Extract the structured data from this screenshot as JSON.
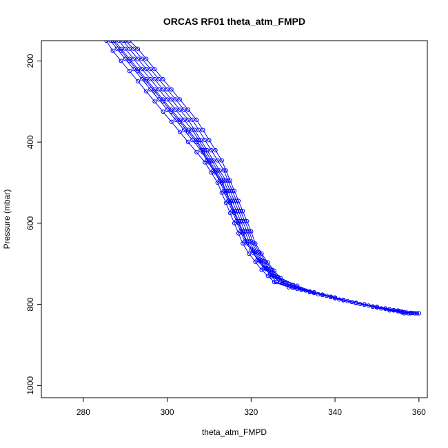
{
  "chart_data": {
    "type": "line",
    "title": "ORCAS RF01 theta_atm_FMPD",
    "xlabel": "theta_atm_FMPD",
    "ylabel": "Pressure (mbar)",
    "xlim": [
      270,
      362
    ],
    "ylim": [
      1030,
      150
    ],
    "y_reversed": true,
    "x_ticks": [
      280,
      300,
      320,
      340,
      360
    ],
    "y_ticks": [
      200,
      400,
      600,
      800,
      1000
    ],
    "grid": false,
    "legend": "none",
    "marker": "open-circle",
    "series_color": "#0000ff",
    "series": [
      {
        "values": [
          [
            286.5,
            150
          ],
          [
            288,
            170
          ],
          [
            290,
            195
          ],
          [
            292,
            220
          ],
          [
            294,
            245
          ],
          [
            296,
            270
          ],
          [
            298,
            295
          ],
          [
            300,
            320
          ],
          [
            302,
            345
          ],
          [
            304,
            370
          ],
          [
            306,
            395
          ],
          [
            308,
            420
          ],
          [
            309.5,
            445
          ],
          [
            311,
            470
          ],
          [
            312.5,
            495
          ],
          [
            313.5,
            520
          ],
          [
            314.5,
            545
          ],
          [
            315.5,
            570
          ],
          [
            316.5,
            595
          ],
          [
            317.5,
            620
          ],
          [
            318.5,
            645
          ],
          [
            320,
            665
          ],
          [
            321.5,
            690
          ],
          [
            323,
            710
          ],
          [
            324.5,
            725
          ],
          [
            326,
            745
          ],
          [
            330,
            760
          ],
          [
            335,
            772
          ],
          [
            340,
            785
          ],
          [
            345,
            797
          ],
          [
            350,
            808
          ],
          [
            354,
            815
          ],
          [
            357,
            820
          ],
          [
            360,
            822
          ]
        ]
      },
      {
        "values": [
          [
            287.5,
            150
          ],
          [
            289,
            170
          ],
          [
            291,
            195
          ],
          [
            293,
            220
          ],
          [
            295,
            245
          ],
          [
            297,
            270
          ],
          [
            299,
            295
          ],
          [
            301,
            320
          ],
          [
            303,
            345
          ],
          [
            305,
            370
          ],
          [
            307,
            395
          ],
          [
            308.5,
            420
          ],
          [
            310,
            445
          ],
          [
            311.5,
            470
          ],
          [
            313,
            495
          ],
          [
            314,
            520
          ],
          [
            315,
            545
          ],
          [
            316,
            570
          ],
          [
            317,
            595
          ],
          [
            318,
            620
          ],
          [
            319,
            645
          ],
          [
            320.5,
            668
          ],
          [
            322,
            690
          ],
          [
            323.5,
            710
          ],
          [
            325,
            728
          ],
          [
            327,
            745
          ],
          [
            331,
            762
          ],
          [
            336,
            775
          ],
          [
            341,
            788
          ],
          [
            346,
            799
          ],
          [
            351,
            810
          ],
          [
            355,
            817
          ],
          [
            358,
            821
          ],
          [
            359.5,
            822
          ]
        ]
      },
      {
        "values": [
          [
            288.5,
            150
          ],
          [
            290,
            170
          ],
          [
            292,
            195
          ],
          [
            294,
            220
          ],
          [
            296,
            245
          ],
          [
            298,
            270
          ],
          [
            300,
            295
          ],
          [
            302,
            320
          ],
          [
            304,
            345
          ],
          [
            306,
            370
          ],
          [
            307.5,
            395
          ],
          [
            309,
            420
          ],
          [
            310.5,
            445
          ],
          [
            312,
            470
          ],
          [
            313.5,
            495
          ],
          [
            314.5,
            520
          ],
          [
            315.5,
            545
          ],
          [
            316.5,
            570
          ],
          [
            317.5,
            595
          ],
          [
            318.5,
            620
          ],
          [
            319.5,
            645
          ],
          [
            321,
            670
          ],
          [
            322.5,
            692
          ],
          [
            324,
            712
          ],
          [
            325.5,
            730
          ],
          [
            328,
            748
          ],
          [
            332,
            764
          ],
          [
            337,
            777
          ],
          [
            342,
            790
          ],
          [
            347,
            801
          ],
          [
            352,
            811
          ],
          [
            356,
            818
          ],
          [
            358.5,
            821
          ],
          [
            359,
            822
          ]
        ]
      },
      {
        "values": [
          [
            289.5,
            150
          ],
          [
            291,
            170
          ],
          [
            293,
            195
          ],
          [
            295,
            220
          ],
          [
            297,
            245
          ],
          [
            299,
            270
          ],
          [
            301,
            295
          ],
          [
            303,
            320
          ],
          [
            305,
            345
          ],
          [
            306.5,
            370
          ],
          [
            308,
            395
          ],
          [
            309.5,
            420
          ],
          [
            311,
            445
          ],
          [
            312.5,
            470
          ],
          [
            314,
            495
          ],
          [
            315,
            520
          ],
          [
            316,
            545
          ],
          [
            317,
            570
          ],
          [
            318,
            595
          ],
          [
            319,
            620
          ],
          [
            320,
            645
          ],
          [
            321.5,
            672
          ],
          [
            323,
            694
          ],
          [
            324.5,
            714
          ],
          [
            326,
            732
          ],
          [
            329,
            750
          ],
          [
            333,
            766
          ],
          [
            338,
            779
          ],
          [
            343,
            792
          ],
          [
            348,
            803
          ],
          [
            353,
            812
          ],
          [
            356.5,
            819
          ],
          [
            358,
            822
          ]
        ]
      },
      {
        "values": [
          [
            290,
            150
          ],
          [
            292,
            170
          ],
          [
            294,
            195
          ],
          [
            296,
            220
          ],
          [
            298,
            245
          ],
          [
            300,
            270
          ],
          [
            302,
            295
          ],
          [
            304,
            320
          ],
          [
            306,
            345
          ],
          [
            307.5,
            370
          ],
          [
            309,
            395
          ],
          [
            310.5,
            420
          ],
          [
            312,
            445
          ],
          [
            313.5,
            470
          ],
          [
            314.5,
            495
          ],
          [
            315.5,
            520
          ],
          [
            316.5,
            545
          ],
          [
            317.5,
            570
          ],
          [
            318.5,
            595
          ],
          [
            319.5,
            620
          ],
          [
            320.5,
            648
          ],
          [
            322,
            672
          ],
          [
            323.5,
            695
          ],
          [
            325,
            715
          ],
          [
            326.5,
            733
          ],
          [
            330,
            752
          ],
          [
            334,
            768
          ],
          [
            339,
            781
          ],
          [
            344,
            794
          ],
          [
            349,
            805
          ],
          [
            354,
            814
          ],
          [
            357,
            820
          ],
          [
            357.5,
            822
          ]
        ]
      },
      {
        "values": [
          [
            285.5,
            150
          ],
          [
            287,
            175
          ],
          [
            289,
            200
          ],
          [
            291,
            225
          ],
          [
            293,
            250
          ],
          [
            295,
            275
          ],
          [
            297,
            300
          ],
          [
            299,
            325
          ],
          [
            301,
            350
          ],
          [
            303,
            375
          ],
          [
            305,
            400
          ],
          [
            307,
            425
          ],
          [
            309,
            450
          ],
          [
            310.5,
            475
          ],
          [
            312,
            500
          ],
          [
            313,
            525
          ],
          [
            314,
            550
          ],
          [
            315,
            575
          ],
          [
            316,
            600
          ],
          [
            317,
            625
          ],
          [
            318,
            650
          ],
          [
            319.5,
            675
          ],
          [
            321,
            695
          ],
          [
            322.5,
            715
          ],
          [
            324,
            730
          ],
          [
            325.5,
            745
          ],
          [
            329,
            758
          ],
          [
            334,
            770
          ],
          [
            339,
            782
          ],
          [
            344,
            794
          ],
          [
            349,
            806
          ],
          [
            353,
            815
          ],
          [
            356,
            820
          ],
          [
            356.5,
            822
          ]
        ]
      },
      {
        "values": [
          [
            287,
            150
          ],
          [
            289,
            175
          ],
          [
            291,
            200
          ],
          [
            293,
            225
          ],
          [
            295,
            250
          ],
          [
            297,
            275
          ],
          [
            299,
            300
          ],
          [
            301,
            325
          ],
          [
            303,
            350
          ],
          [
            305,
            375
          ],
          [
            307,
            400
          ],
          [
            308.5,
            425
          ],
          [
            310,
            450
          ],
          [
            311.5,
            475
          ],
          [
            313,
            500
          ],
          [
            314,
            525
          ],
          [
            315,
            550
          ],
          [
            316,
            575
          ],
          [
            317,
            600
          ],
          [
            318,
            625
          ],
          [
            319,
            650
          ],
          [
            320.5,
            673
          ],
          [
            322,
            694
          ],
          [
            323.5,
            713
          ],
          [
            325,
            731
          ],
          [
            327.5,
            748
          ],
          [
            332,
            763
          ],
          [
            337,
            776
          ],
          [
            342,
            789
          ],
          [
            347,
            800
          ],
          [
            352,
            810
          ],
          [
            355.5,
            817
          ],
          [
            358,
            821
          ],
          [
            359,
            822
          ]
        ]
      },
      {
        "values": [
          [
            291,
            150
          ],
          [
            293,
            170
          ],
          [
            295,
            195
          ],
          [
            297,
            220
          ],
          [
            299,
            245
          ],
          [
            301,
            270
          ],
          [
            303,
            295
          ],
          [
            305,
            320
          ],
          [
            307,
            345
          ],
          [
            308.5,
            370
          ],
          [
            310,
            395
          ],
          [
            311.5,
            420
          ],
          [
            313,
            445
          ],
          [
            314,
            470
          ],
          [
            315,
            495
          ],
          [
            316,
            520
          ],
          [
            317,
            545
          ],
          [
            318,
            570
          ],
          [
            319,
            595
          ],
          [
            320,
            620
          ],
          [
            321,
            650
          ],
          [
            322.5,
            675
          ],
          [
            324,
            697
          ],
          [
            325.5,
            717
          ],
          [
            327,
            735
          ],
          [
            331,
            754
          ],
          [
            335,
            770
          ],
          [
            340,
            783
          ],
          [
            345,
            796
          ],
          [
            350,
            806
          ],
          [
            355,
            815
          ],
          [
            358,
            821
          ],
          [
            360,
            822
          ]
        ]
      }
    ]
  }
}
